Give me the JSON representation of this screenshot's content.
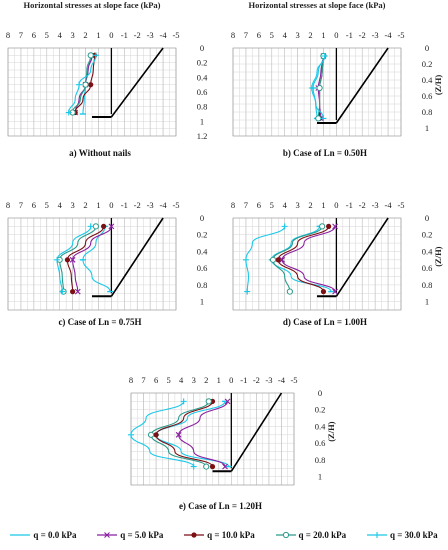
{
  "panel_header": "Horizontal stresses at slope face (kPa)",
  "z_axis_label": "(Z/H)",
  "legend": [
    {
      "label": "q = 0.0 kPa",
      "color": "#19c8e8",
      "marker": "dash"
    },
    {
      "label": "q = 5.0 kPa",
      "color": "#8a1fa0",
      "marker": "x"
    },
    {
      "label": "q = 10.0 kPa",
      "color": "#7a0f14",
      "marker": "dot"
    },
    {
      "label": "q = 20.0 kPa",
      "color": "#2a9a8a",
      "marker": "circle"
    },
    {
      "label": "q = 30.0 kPa",
      "color": "#19c8e8",
      "marker": "plus"
    }
  ],
  "chart_data": [
    {
      "type": "line",
      "caption": "a) Without nails",
      "title": "Horizontal stresses at slope face (kPa)",
      "xlabel": "Horizontal stresses at slope face (kPa)",
      "ylabel": "",
      "x_ticks": [
        "8",
        "7",
        "6",
        "5",
        "4",
        "3",
        "2",
        "1",
        "0",
        "-1",
        "-2",
        "-3",
        "-4",
        "-5"
      ],
      "y_ticks": [
        "0",
        "0.2",
        "0.4",
        "0.6",
        "0.8",
        "1",
        "1.2"
      ],
      "xlim": [
        8,
        -5
      ],
      "ylim": [
        0,
        1.2
      ],
      "y_axis_side": "right",
      "y_axis_label": "",
      "series": [
        {
          "name": "q = 0.0 kPa",
          "x": [
            1.5,
            1.8,
            2.0,
            2.1,
            2.2
          ],
          "y": [
            0.1,
            0.3,
            0.5,
            0.7,
            0.9
          ]
        },
        {
          "name": "q = 5.0 kPa",
          "x": [
            1.5,
            1.8,
            2.0,
            2.5,
            2.8
          ],
          "y": [
            0.1,
            0.3,
            0.5,
            0.7,
            0.88
          ]
        },
        {
          "name": "q = 10.0 kPa",
          "x": [
            1.3,
            1.4,
            1.6,
            2.2,
            2.8
          ],
          "y": [
            0.1,
            0.3,
            0.5,
            0.7,
            0.88
          ]
        },
        {
          "name": "q = 20.0 kPa",
          "x": [
            1.6,
            1.9,
            2.0,
            2.4,
            3.0
          ],
          "y": [
            0.1,
            0.3,
            0.5,
            0.7,
            0.88
          ]
        },
        {
          "name": "q = 30.0 kPa",
          "x": [
            1.2,
            1.6,
            2.5,
            2.8,
            3.3
          ],
          "y": [
            0.1,
            0.3,
            0.5,
            0.7,
            0.88
          ]
        }
      ]
    },
    {
      "type": "line",
      "caption": "b) Case of Ln = 0.50H",
      "title": "Horizontal stresses at slope face (kPa)",
      "xlabel": "Horizontal stresses at slope face (kPa)",
      "ylabel": "(Z/H)",
      "x_ticks": [
        "8",
        "7",
        "6",
        "5",
        "4",
        "3",
        "2",
        "1",
        "0",
        "-1",
        "-2",
        "-3",
        "-4",
        "-5"
      ],
      "y_ticks": [
        "0",
        "0.2",
        "0.4",
        "0.6",
        "0.8",
        "1"
      ],
      "xlim": [
        8,
        -5
      ],
      "ylim": [
        0,
        1.1
      ],
      "y_axis_side": "right",
      "y_axis_label": "(Z/H)",
      "series": [
        {
          "name": "q = 0.0 kPa",
          "x": [
            1.0,
            1.4,
            1.8,
            1.6,
            1.5
          ],
          "y": [
            0.1,
            0.3,
            0.5,
            0.7,
            0.88
          ]
        },
        {
          "name": "q = 5.0 kPa",
          "x": [
            1.0,
            1.2,
            1.4,
            1.3,
            1.2
          ],
          "y": [
            0.1,
            0.3,
            0.5,
            0.7,
            0.88
          ]
        },
        {
          "name": "q = 10.0 kPa",
          "x": [
            1.0,
            1.1,
            1.3,
            1.3,
            1.3
          ],
          "y": [
            0.1,
            0.3,
            0.5,
            0.7,
            0.88
          ]
        },
        {
          "name": "q = 20.0 kPa",
          "x": [
            1.0,
            1.1,
            1.3,
            1.3,
            1.4
          ],
          "y": [
            0.1,
            0.3,
            0.5,
            0.7,
            0.88
          ]
        },
        {
          "name": "q = 30.0 kPa",
          "x": [
            0.9,
            1.5,
            1.9,
            1.6,
            1.0
          ],
          "y": [
            0.1,
            0.3,
            0.5,
            0.7,
            0.88
          ]
        }
      ]
    },
    {
      "type": "line",
      "caption": "c) Case of Ln = 0.75H",
      "title": "",
      "xlabel": "",
      "ylabel": "",
      "x_ticks": [
        "8",
        "7",
        "6",
        "5",
        "4",
        "3",
        "2",
        "1",
        "0",
        "-1",
        "-2",
        "-3",
        "-4",
        "-5"
      ],
      "y_ticks": [
        "0",
        "0.2",
        "0.4",
        "0.6",
        "0.8",
        "1"
      ],
      "xlim": [
        8,
        -5
      ],
      "ylim": [
        0,
        1.1
      ],
      "y_axis_side": "right",
      "y_axis_label": "",
      "series": [
        {
          "name": "q = 0.0 kPa",
          "x": [
            0.5,
            1.2,
            2.2,
            1.5,
            0.1
          ],
          "y": [
            0.1,
            0.3,
            0.5,
            0.7,
            0.88
          ]
        },
        {
          "name": "q = 5.0 kPa",
          "x": [
            0.0,
            1.6,
            3.0,
            2.8,
            2.6
          ],
          "y": [
            0.1,
            0.3,
            0.5,
            0.7,
            0.88
          ]
        },
        {
          "name": "q = 10.0 kPa",
          "x": [
            0.6,
            2.0,
            3.4,
            3.1,
            3.0
          ],
          "y": [
            0.1,
            0.3,
            0.5,
            0.7,
            0.88
          ]
        },
        {
          "name": "q = 20.0 kPa",
          "x": [
            1.2,
            2.6,
            4.0,
            3.8,
            3.7
          ],
          "y": [
            0.1,
            0.3,
            0.5,
            0.7,
            0.88
          ]
        },
        {
          "name": "q = 30.0 kPa",
          "x": [
            1.6,
            3.0,
            4.2,
            4.0,
            3.8
          ],
          "y": [
            0.1,
            0.3,
            0.5,
            0.7,
            0.88
          ]
        }
      ]
    },
    {
      "type": "line",
      "caption": "d) Case of Ln = 1.00H",
      "title": "",
      "xlabel": "",
      "ylabel": "(Z/H)",
      "x_ticks": [
        "8",
        "7",
        "6",
        "5",
        "4",
        "3",
        "2",
        "1",
        "0",
        "-1",
        "-2",
        "-3",
        "-4",
        "-5"
      ],
      "y_ticks": [
        "0",
        "0.2",
        "0.4",
        "0.6",
        "0.8",
        "1"
      ],
      "xlim": [
        8,
        -5
      ],
      "ylim": [
        0,
        1.1
      ],
      "y_axis_side": "right",
      "y_axis_label": "(Z/H)",
      "series": [
        {
          "name": "q = 0.0 kPa",
          "x": [
            1.3,
            3.5,
            5.0,
            3.5,
            0.4
          ],
          "y": [
            0.1,
            0.3,
            0.5,
            0.7,
            0.88
          ]
        },
        {
          "name": "q = 5.0 kPa",
          "x": [
            0.1,
            2.5,
            4.2,
            2.5,
            0.1
          ],
          "y": [
            0.1,
            0.3,
            0.5,
            0.7,
            0.88
          ]
        },
        {
          "name": "q = 10.0 kPa",
          "x": [
            0.6,
            3.0,
            4.5,
            3.0,
            1.0
          ],
          "y": [
            0.1,
            0.3,
            0.5,
            0.7,
            0.88
          ]
        },
        {
          "name": "q = 20.0 kPa",
          "x": [
            1.1,
            3.4,
            4.9,
            4.0,
            3.6
          ],
          "y": [
            0.1,
            0.3,
            0.5,
            0.7,
            0.88
          ]
        },
        {
          "name": "q = 30.0 kPa",
          "x": [
            4.0,
            6.5,
            7.0,
            6.8,
            6.9
          ],
          "y": [
            0.1,
            0.3,
            0.5,
            0.7,
            0.88
          ]
        }
      ]
    },
    {
      "type": "line",
      "caption": "e) Case of Ln = 1.20H",
      "title": "",
      "xlabel": "",
      "ylabel": "(Z/H)",
      "x_ticks": [
        "8",
        "7",
        "6",
        "5",
        "4",
        "3",
        "2",
        "1",
        "0",
        "-1",
        "-2",
        "-3",
        "-4",
        "-5"
      ],
      "y_ticks": [
        "0",
        "0.2",
        "0.4",
        "0.6",
        "0.8",
        "1"
      ],
      "xlim": [
        8,
        -5
      ],
      "ylim": [
        0,
        1.1
      ],
      "y_axis_side": "right",
      "y_axis_label": "(Z/H)",
      "series": [
        {
          "name": "q = 0.0 kPa",
          "x": [
            0.5,
            3.5,
            6.0,
            4.0,
            0.2
          ],
          "y": [
            0.1,
            0.3,
            0.5,
            0.7,
            0.88
          ]
        },
        {
          "name": "q = 5.0 kPa",
          "x": [
            0.3,
            2.5,
            4.2,
            3.0,
            0.5
          ],
          "y": [
            0.1,
            0.3,
            0.5,
            0.7,
            0.88
          ]
        },
        {
          "name": "q = 10.0 kPa",
          "x": [
            1.5,
            3.8,
            6.0,
            4.5,
            1.5
          ],
          "y": [
            0.1,
            0.3,
            0.5,
            0.7,
            0.88
          ]
        },
        {
          "name": "q = 20.0 kPa",
          "x": [
            1.8,
            4.2,
            6.4,
            5.0,
            2.0
          ],
          "y": [
            0.1,
            0.3,
            0.5,
            0.7,
            0.88
          ]
        },
        {
          "name": "q = 30.0 kPa",
          "x": [
            3.8,
            6.8,
            8.0,
            6.5,
            3.0
          ],
          "y": [
            0.1,
            0.3,
            0.5,
            0.7,
            0.88
          ]
        }
      ]
    }
  ]
}
